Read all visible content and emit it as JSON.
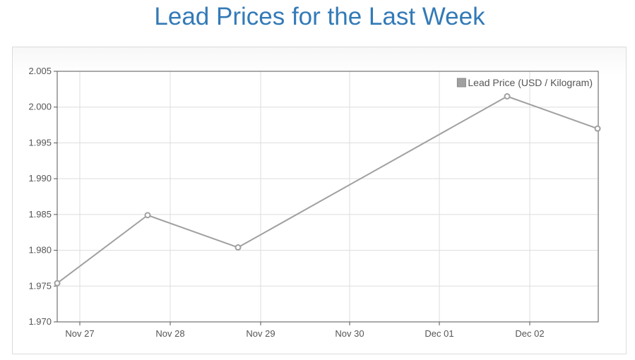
{
  "page": {
    "title": "Lead Prices for the Last Week"
  },
  "chart_data": {
    "type": "line",
    "title": "",
    "xlabel": "",
    "ylabel": "",
    "x_ticks": [
      "Nov 27",
      "Nov 28",
      "Nov 29",
      "Nov 30",
      "Dec 01",
      "Dec 02"
    ],
    "ylim": [
      1.97,
      2.005
    ],
    "y_ticks": [
      "1.970",
      "1.975",
      "1.980",
      "1.985",
      "1.990",
      "1.995",
      "2.000",
      "2.005"
    ],
    "grid": true,
    "legend_position": "top-right",
    "series": [
      {
        "name": "Lead Price (USD / Kilogram)",
        "color": "#a0a0a0",
        "points": [
          {
            "x": "2023-11-26T18:00",
            "y": 1.9754
          },
          {
            "x": "2023-11-27T18:00",
            "y": 1.9849
          },
          {
            "x": "2023-11-28T18:00",
            "y": 1.9804
          },
          {
            "x": "2023-12-01T18:00",
            "y": 2.0015
          },
          {
            "x": "2023-12-02T18:00",
            "y": 1.997
          }
        ]
      }
    ]
  }
}
